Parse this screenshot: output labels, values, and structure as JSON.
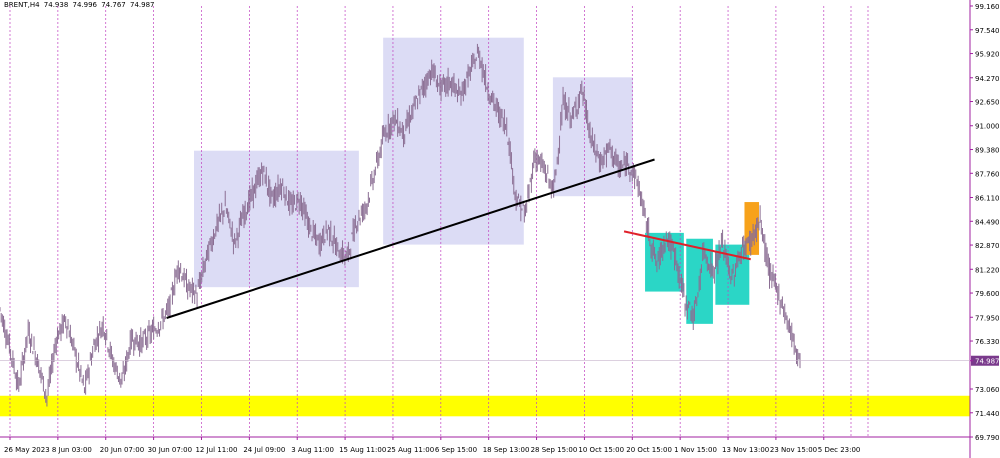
{
  "header": {
    "symbol": "BRENT,H4",
    "open": "74.938",
    "high": "74.996",
    "low": "74.767",
    "close": "74.987"
  },
  "current_price_label": "74.987",
  "colors": {
    "background": "#ffffff",
    "candle": "#8b6e93",
    "grid_vertical": "#c040c0",
    "axis": "#a020a0",
    "zone_lavender": "#dcdcf5",
    "zone_cyan": "#2bd6c6",
    "zone_orange": "#f7a21b",
    "zone_yellow": "#ffff00",
    "trendline_black": "#000000",
    "trendline_red": "#e0202a",
    "price_label_bg": "#7a3a8c"
  },
  "chart_data": {
    "type": "candlestick",
    "title": "",
    "xlabel": "",
    "ylabel": "",
    "timeframe": "H4",
    "ylim": [
      69.79,
      99.16
    ],
    "y_ticks": [
      "99.160",
      "97.540",
      "95.920",
      "94.270",
      "92.650",
      "91.000",
      "89.380",
      "87.760",
      "86.110",
      "84.490",
      "82.870",
      "81.220",
      "79.600",
      "77.950",
      "76.330",
      "74.987",
      "73.060",
      "71.440",
      "69.790"
    ],
    "x_ticks": [
      "26 May 2023",
      "8 Jun 03:00",
      "20 Jun 07:00",
      "30 Jun 07:00",
      "12 Jul 11:00",
      "24 Jul 09:00",
      "3 Aug 11:00",
      "15 Aug 11:00",
      "25 Aug 11:00",
      "6 Sep 15:00",
      "18 Sep 13:00",
      "28 Sep 15:00",
      "10 Oct 15:00",
      "20 Oct 15:00",
      "1 Nov 15:00",
      "13 Nov 13:00",
      "23 Nov 15:00",
      "5 Dec 23:00"
    ],
    "grid": "vertical dashed",
    "price_path": [
      [
        0,
        78.5
      ],
      [
        4,
        76.0
      ],
      [
        8,
        73.2
      ],
      [
        12,
        77.0
      ],
      [
        16,
        75.0
      ],
      [
        20,
        72.5
      ],
      [
        24,
        76.5
      ],
      [
        28,
        77.8
      ],
      [
        32,
        75.5
      ],
      [
        36,
        73.0
      ],
      [
        40,
        76.0
      ],
      [
        44,
        77.5
      ],
      [
        48,
        75.0
      ],
      [
        52,
        73.5
      ],
      [
        56,
        76.5
      ],
      [
        60,
        76.2
      ],
      [
        64,
        76.8
      ],
      [
        68,
        77.5
      ],
      [
        72,
        78.5
      ],
      [
        76,
        81.5
      ],
      [
        80,
        80.0
      ],
      [
        84,
        79.5
      ],
      [
        88,
        82.0
      ],
      [
        92,
        84.0
      ],
      [
        96,
        85.5
      ],
      [
        100,
        83.0
      ],
      [
        104,
        85.0
      ],
      [
        108,
        86.5
      ],
      [
        112,
        88.0
      ],
      [
        116,
        86.0
      ],
      [
        120,
        87.0
      ],
      [
        124,
        85.5
      ],
      [
        128,
        86.0
      ],
      [
        132,
        84.0
      ],
      [
        136,
        83.0
      ],
      [
        140,
        84.0
      ],
      [
        144,
        82.5
      ],
      [
        148,
        82.0
      ],
      [
        152,
        84.5
      ],
      [
        156,
        85.5
      ],
      [
        160,
        88.0
      ],
      [
        164,
        90.5
      ],
      [
        168,
        91.5
      ],
      [
        172,
        90.5
      ],
      [
        176,
        92.0
      ],
      [
        180,
        93.5
      ],
      [
        184,
        94.8
      ],
      [
        188,
        93.5
      ],
      [
        192,
        94.0
      ],
      [
        196,
        93.0
      ],
      [
        200,
        94.5
      ],
      [
        204,
        96.0
      ],
      [
        208,
        93.5
      ],
      [
        212,
        92.0
      ],
      [
        216,
        91.0
      ],
      [
        220,
        86.0
      ],
      [
        224,
        85.0
      ],
      [
        228,
        89.0
      ],
      [
        232,
        88.0
      ],
      [
        236,
        86.5
      ],
      [
        240,
        92.5
      ],
      [
        244,
        91.5
      ],
      [
        248,
        93.5
      ],
      [
        252,
        90.0
      ],
      [
        256,
        88.5
      ],
      [
        260,
        89.5
      ],
      [
        264,
        88.0
      ],
      [
        268,
        88.5
      ],
      [
        272,
        87.0
      ],
      [
        276,
        84.0
      ],
      [
        280,
        81.5
      ],
      [
        284,
        83.5
      ],
      [
        288,
        82.0
      ],
      [
        292,
        79.0
      ],
      [
        296,
        78.0
      ],
      [
        300,
        82.5
      ],
      [
        304,
        81.0
      ],
      [
        308,
        83.0
      ],
      [
        312,
        80.5
      ],
      [
        316,
        82.5
      ],
      [
        320,
        83.2
      ],
      [
        324,
        84.5
      ],
      [
        328,
        81.0
      ],
      [
        332,
        79.5
      ],
      [
        336,
        77.5
      ],
      [
        340,
        75.4
      ],
      [
        341,
        74.99
      ]
    ],
    "annotations": [
      {
        "type": "rectangle",
        "color": "lavender",
        "x0": 80,
        "x1": 148,
        "y0": 80.0,
        "y1": 89.3
      },
      {
        "type": "rectangle",
        "color": "lavender",
        "x0": 158,
        "x1": 216,
        "y0": 82.9,
        "y1": 97.0
      },
      {
        "type": "rectangle",
        "color": "lavender",
        "x0": 228,
        "x1": 261,
        "y0": 86.2,
        "y1": 94.3
      },
      {
        "type": "rectangle",
        "color": "cyan",
        "x0": 266,
        "x1": 282,
        "y0": 79.7,
        "y1": 83.7
      },
      {
        "type": "rectangle",
        "color": "cyan",
        "x0": 283,
        "x1": 294,
        "y0": 77.5,
        "y1": 83.3
      },
      {
        "type": "rectangle",
        "color": "cyan",
        "x0": 295,
        "x1": 309,
        "y0": 78.8,
        "y1": 82.9
      },
      {
        "type": "rectangle",
        "color": "orange",
        "x0": 307,
        "x1": 313,
        "y0": 82.2,
        "y1": 85.8
      },
      {
        "type": "rectangle",
        "color": "yellow",
        "x0": 0,
        "x1": 400,
        "y0": 71.2,
        "y1": 72.6
      },
      {
        "type": "trendline",
        "color": "black",
        "points": [
          [
            71,
            77.9
          ],
          [
            279,
            88.7
          ]
        ]
      },
      {
        "type": "trendline",
        "color": "red",
        "points": [
          [
            266,
            83.8
          ],
          [
            320,
            81.9
          ]
        ]
      }
    ]
  }
}
